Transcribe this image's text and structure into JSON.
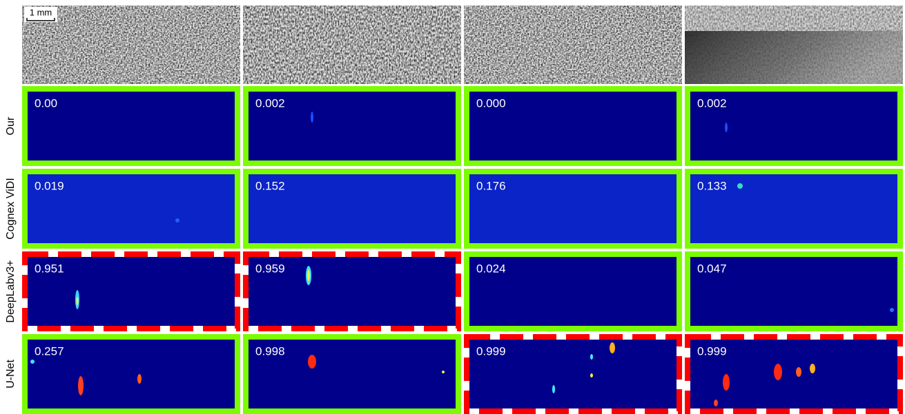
{
  "scale_bar": "1 mm",
  "rows": [
    {
      "label": "Our",
      "background": "#00008a",
      "cells": [
        {
          "score": "0.00",
          "frame": "#7cfc00",
          "style": "solid"
        },
        {
          "score": "0.002",
          "frame": "#7cfc00",
          "style": "solid"
        },
        {
          "score": "0.000",
          "frame": "#7cfc00",
          "style": "solid"
        },
        {
          "score": "0.002",
          "frame": "#7cfc00",
          "style": "solid"
        }
      ]
    },
    {
      "label": "Cognex ViDI",
      "background": "#0b24c8",
      "cells": [
        {
          "score": "0.019",
          "frame": "#7cfc00",
          "style": "solid"
        },
        {
          "score": "0.152",
          "frame": "#7cfc00",
          "style": "solid"
        },
        {
          "score": "0.176",
          "frame": "#7cfc00",
          "style": "solid"
        },
        {
          "score": "0.133",
          "frame": "#7cfc00",
          "style": "solid"
        }
      ]
    },
    {
      "label": "DeepLabv3+",
      "background": "#00008a",
      "cells": [
        {
          "score": "0.951",
          "frame": "#ff0000",
          "style": "dashed"
        },
        {
          "score": "0.959",
          "frame": "#ff0000",
          "style": "dashed"
        },
        {
          "score": "0.024",
          "frame": "#7cfc00",
          "style": "solid"
        },
        {
          "score": "0.047",
          "frame": "#7cfc00",
          "style": "solid"
        }
      ]
    },
    {
      "label": "U-Net",
      "background": "#00008a",
      "cells": [
        {
          "score": "0.257",
          "frame": "#7cfc00",
          "style": "solid"
        },
        {
          "score": "0.998",
          "frame": "#7cfc00",
          "style": "solid"
        },
        {
          "score": "0.999",
          "frame": "#ff0000",
          "style": "dashed"
        },
        {
          "score": "0.999",
          "frame": "#ff0000",
          "style": "dashed"
        }
      ]
    }
  ]
}
